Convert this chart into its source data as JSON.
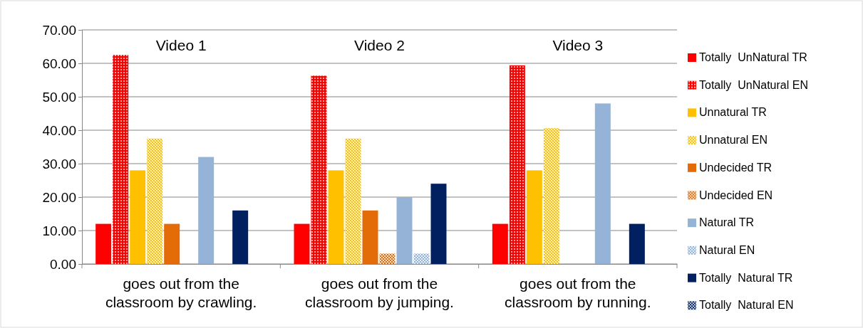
{
  "chart_data": {
    "type": "bar",
    "categories": [
      "goes out from the classroom by crawling.",
      "goes out from the classroom by jumping.",
      "goes out from the classroom by running."
    ],
    "series": [
      {
        "name": "Totally  UnNatural TR",
        "color": "#ff0000",
        "values": [
          12,
          12,
          12
        ]
      },
      {
        "name": "Totally  UnNatural EN",
        "color": "#ff0000",
        "values": [
          62.5,
          56.3,
          59.4
        ]
      },
      {
        "name": "Unnatural TR",
        "color": "#ffc000",
        "values": [
          28,
          28,
          28
        ]
      },
      {
        "name": "Unnatural EN",
        "color": "#ffc000",
        "values": [
          37.5,
          37.5,
          40.6
        ]
      },
      {
        "name": "Undecided TR",
        "color": "#e36c09",
        "values": [
          12,
          16,
          0
        ]
      },
      {
        "name": "Undecided EN",
        "color": "#e36c09",
        "values": [
          0,
          3.1,
          0
        ]
      },
      {
        "name": "Natural TR",
        "color": "#95b3d7",
        "values": [
          32,
          20,
          48
        ]
      },
      {
        "name": "Natural EN",
        "color": "#95b3d7",
        "values": [
          0,
          3.1,
          0
        ]
      },
      {
        "name": "Totally  Natural TR",
        "color": "#002060",
        "values": [
          16,
          24,
          12
        ]
      },
      {
        "name": "Totally  Natural EN",
        "color": "#002060",
        "values": [
          0,
          0,
          0
        ]
      }
    ],
    "ylim": [
      0,
      70
    ],
    "yticks": [
      {
        "value": 0,
        "label": "0.00"
      },
      {
        "value": 10,
        "label": "10.00"
      },
      {
        "value": 20,
        "label": "20.00"
      },
      {
        "value": 30,
        "label": "30.00"
      },
      {
        "value": 40,
        "label": "40.00"
      },
      {
        "value": 50,
        "label": "50.00"
      },
      {
        "value": 60,
        "label": "60.00"
      },
      {
        "value": 70,
        "label": "70.00"
      }
    ],
    "grid": "y",
    "legend": "right",
    "annotations": [
      "Video 1",
      "Video 2",
      "Video 3"
    ]
  }
}
